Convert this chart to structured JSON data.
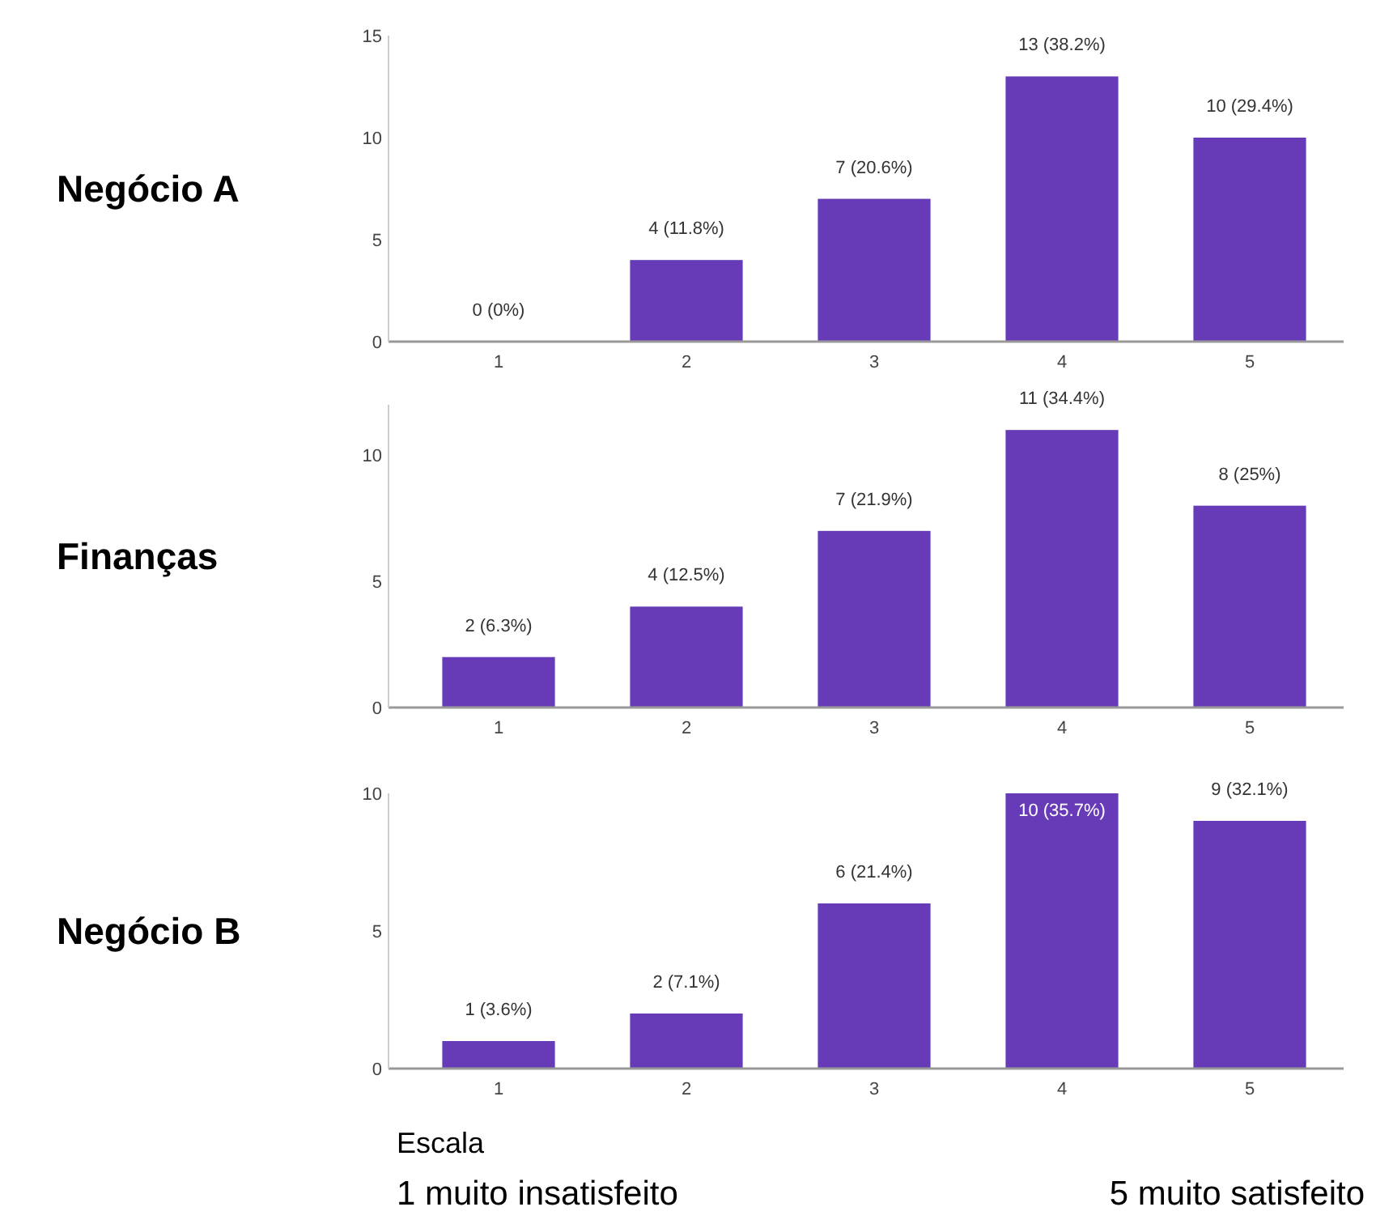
{
  "chart_data": [
    {
      "type": "bar",
      "title": "Negócio A",
      "categories": [
        "1",
        "2",
        "3",
        "4",
        "5"
      ],
      "values": [
        0,
        4,
        7,
        13,
        10
      ],
      "value_labels": [
        "0 (0%)",
        "4 (11.8%)",
        "7 (20.6%)",
        "13 (38.2%)",
        "10 (29.4%)"
      ],
      "color": "#673ab7",
      "ylim": [
        0,
        15
      ],
      "yticks": [
        0,
        5,
        10,
        15
      ],
      "grid": false
    },
    {
      "type": "bar",
      "title": "Finanças",
      "categories": [
        "1",
        "2",
        "3",
        "4",
        "5"
      ],
      "values": [
        2,
        4,
        7,
        11,
        8
      ],
      "value_labels": [
        "2 (6.3%)",
        "4 (12.5%)",
        "7 (21.9%)",
        "11 (34.4%)",
        "8 (25%)"
      ],
      "color": "#673ab7",
      "ylim": [
        0,
        12
      ],
      "yticks": [
        0,
        5,
        10
      ],
      "grid": false
    },
    {
      "type": "bar",
      "title": "Negócio B",
      "categories": [
        "1",
        "2",
        "3",
        "4",
        "5"
      ],
      "values": [
        1,
        2,
        6,
        10,
        9
      ],
      "value_labels": [
        "1 (3.6%)",
        "2 (7.1%)",
        "6 (21.4%)",
        "10 (35.7%)",
        "9 (32.1%)"
      ],
      "color": "#673ab7",
      "ylim": [
        0,
        10
      ],
      "yticks": [
        0,
        5,
        10
      ],
      "grid": false,
      "annotations": [
        "Escala",
        "1 muito insatisfeito",
        "5 muito satisfeito"
      ]
    }
  ]
}
